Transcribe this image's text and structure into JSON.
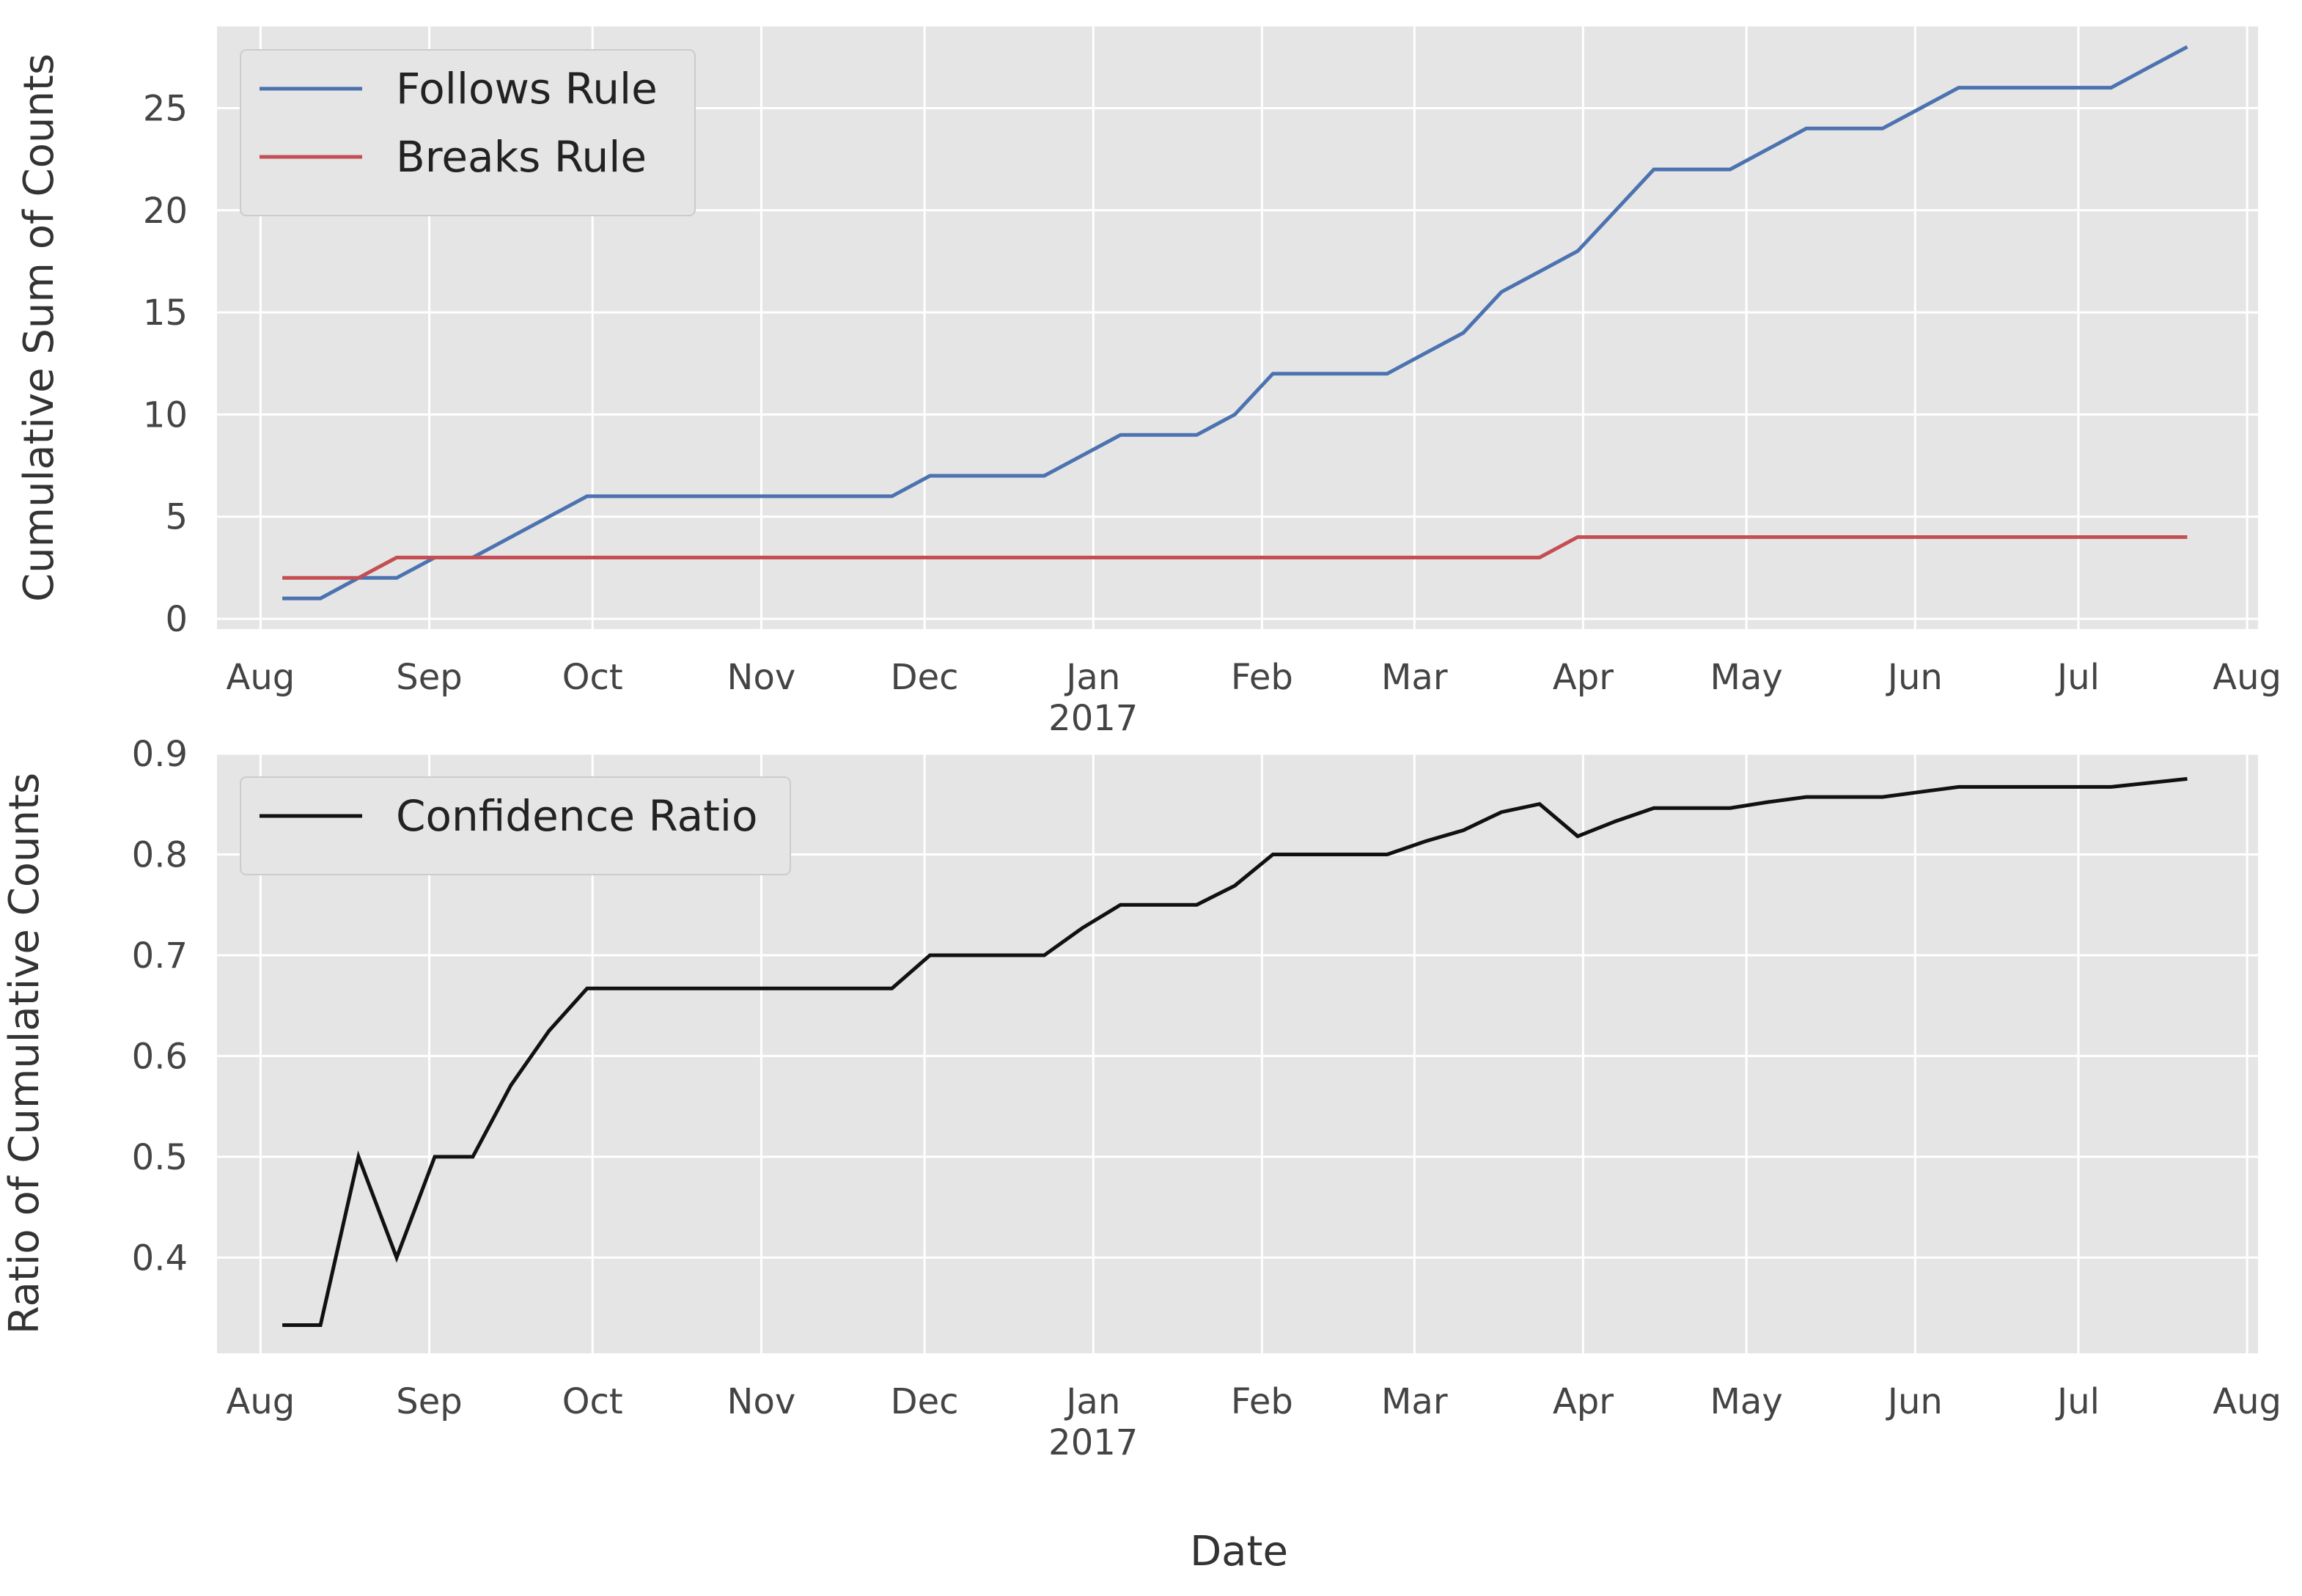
{
  "figure": {
    "xlabel": "Date"
  },
  "chart_data": [
    {
      "type": "line",
      "ylabel": "Cumulative Sum of Counts",
      "xlim": [
        "2016-07-24",
        "2017-08-03"
      ],
      "ylim": [
        -0.5,
        29
      ],
      "yticks": [
        0,
        5,
        10,
        15,
        20,
        25
      ],
      "xticks": [
        {
          "date": "2016-08-01",
          "label": "Aug"
        },
        {
          "date": "2016-09-01",
          "label": "Sep"
        },
        {
          "date": "2016-10-01",
          "label": "Oct"
        },
        {
          "date": "2016-11-01",
          "label": "Nov"
        },
        {
          "date": "2016-12-01",
          "label": "Dec"
        },
        {
          "date": "2017-01-01",
          "label": "Jan",
          "sublabel": "2017"
        },
        {
          "date": "2017-02-01",
          "label": "Feb"
        },
        {
          "date": "2017-03-01",
          "label": "Mar"
        },
        {
          "date": "2017-04-01",
          "label": "Apr"
        },
        {
          "date": "2017-05-01",
          "label": "May"
        },
        {
          "date": "2017-06-01",
          "label": "Jun"
        },
        {
          "date": "2017-07-01",
          "label": "Jul"
        },
        {
          "date": "2017-08-01",
          "label": "Aug"
        }
      ],
      "grid": true,
      "legend_position": "top-left",
      "x": [
        "2016-08-05",
        "2016-08-12",
        "2016-08-19",
        "2016-08-26",
        "2016-09-02",
        "2016-09-09",
        "2016-09-16",
        "2016-09-23",
        "2016-09-30",
        "2016-10-07",
        "2016-10-14",
        "2016-10-21",
        "2016-10-28",
        "2016-11-04",
        "2016-11-11",
        "2016-11-18",
        "2016-11-25",
        "2016-12-02",
        "2016-12-09",
        "2016-12-16",
        "2016-12-23",
        "2016-12-30",
        "2017-01-06",
        "2017-01-13",
        "2017-01-20",
        "2017-01-27",
        "2017-02-03",
        "2017-02-10",
        "2017-02-17",
        "2017-02-24",
        "2017-03-03",
        "2017-03-10",
        "2017-03-17",
        "2017-03-24",
        "2017-03-31",
        "2017-04-07",
        "2017-04-14",
        "2017-04-21",
        "2017-04-28",
        "2017-05-05",
        "2017-05-12",
        "2017-05-19",
        "2017-05-26",
        "2017-06-02",
        "2017-06-09",
        "2017-06-16",
        "2017-06-23",
        "2017-06-30",
        "2017-07-07",
        "2017-07-14",
        "2017-07-21"
      ],
      "series": [
        {
          "name": "Follows Rule",
          "color": "#4c72b0",
          "values": [
            1,
            1,
            2,
            2,
            3,
            3,
            4,
            5,
            6,
            6,
            6,
            6,
            6,
            6,
            6,
            6,
            6,
            7,
            7,
            7,
            7,
            8,
            9,
            9,
            9,
            10,
            12,
            12,
            12,
            12,
            13,
            14,
            16,
            17,
            18,
            20,
            22,
            22,
            22,
            23,
            24,
            24,
            24,
            25,
            26,
            26,
            26,
            26,
            26,
            27,
            28
          ]
        },
        {
          "name": "Breaks Rule",
          "color": "#c44e52",
          "values": [
            2,
            2,
            2,
            3,
            3,
            3,
            3,
            3,
            3,
            3,
            3,
            3,
            3,
            3,
            3,
            3,
            3,
            3,
            3,
            3,
            3,
            3,
            3,
            3,
            3,
            3,
            3,
            3,
            3,
            3,
            3,
            3,
            3,
            3,
            4,
            4,
            4,
            4,
            4,
            4,
            4,
            4,
            4,
            4,
            4,
            4,
            4,
            4,
            4,
            4,
            4
          ]
        }
      ]
    },
    {
      "type": "line",
      "ylabel": "Ratio of Cumulative Counts",
      "xlim": [
        "2016-07-24",
        "2017-08-03"
      ],
      "ylim": [
        0.305,
        0.9
      ],
      "yticks": [
        0.4,
        0.5,
        0.6,
        0.7,
        0.8,
        0.9
      ],
      "xticks": [
        {
          "date": "2016-08-01",
          "label": "Aug"
        },
        {
          "date": "2016-09-01",
          "label": "Sep"
        },
        {
          "date": "2016-10-01",
          "label": "Oct"
        },
        {
          "date": "2016-11-01",
          "label": "Nov"
        },
        {
          "date": "2016-12-01",
          "label": "Dec"
        },
        {
          "date": "2017-01-01",
          "label": "Jan",
          "sublabel": "2017"
        },
        {
          "date": "2017-02-01",
          "label": "Feb"
        },
        {
          "date": "2017-03-01",
          "label": "Mar"
        },
        {
          "date": "2017-04-01",
          "label": "Apr"
        },
        {
          "date": "2017-05-01",
          "label": "May"
        },
        {
          "date": "2017-06-01",
          "label": "Jun"
        },
        {
          "date": "2017-07-01",
          "label": "Jul"
        },
        {
          "date": "2017-08-01",
          "label": "Aug"
        }
      ],
      "grid": true,
      "legend_position": "top-left",
      "x": [
        "2016-08-05",
        "2016-08-12",
        "2016-08-19",
        "2016-08-26",
        "2016-09-02",
        "2016-09-09",
        "2016-09-16",
        "2016-09-23",
        "2016-09-30",
        "2016-10-07",
        "2016-10-14",
        "2016-10-21",
        "2016-10-28",
        "2016-11-04",
        "2016-11-11",
        "2016-11-18",
        "2016-11-25",
        "2016-12-02",
        "2016-12-09",
        "2016-12-16",
        "2016-12-23",
        "2016-12-30",
        "2017-01-06",
        "2017-01-13",
        "2017-01-20",
        "2017-01-27",
        "2017-02-03",
        "2017-02-10",
        "2017-02-17",
        "2017-02-24",
        "2017-03-03",
        "2017-03-10",
        "2017-03-17",
        "2017-03-24",
        "2017-03-31",
        "2017-04-07",
        "2017-04-14",
        "2017-04-21",
        "2017-04-28",
        "2017-05-05",
        "2017-05-12",
        "2017-05-19",
        "2017-05-26",
        "2017-06-02",
        "2017-06-09",
        "2017-06-16",
        "2017-06-23",
        "2017-06-30",
        "2017-07-07",
        "2017-07-14",
        "2017-07-21"
      ],
      "series": [
        {
          "name": "Confidence Ratio",
          "color": "#111111",
          "values": [
            0.333,
            0.333,
            0.5,
            0.4,
            0.5,
            0.5,
            0.571,
            0.625,
            0.667,
            0.667,
            0.667,
            0.667,
            0.667,
            0.667,
            0.667,
            0.667,
            0.667,
            0.7,
            0.7,
            0.7,
            0.7,
            0.727,
            0.75,
            0.75,
            0.75,
            0.769,
            0.8,
            0.8,
            0.8,
            0.8,
            0.813,
            0.824,
            0.842,
            0.85,
            0.818,
            0.833,
            0.846,
            0.846,
            0.846,
            0.852,
            0.857,
            0.857,
            0.857,
            0.862,
            0.867,
            0.867,
            0.867,
            0.867,
            0.867,
            0.871,
            0.875
          ]
        }
      ]
    }
  ]
}
